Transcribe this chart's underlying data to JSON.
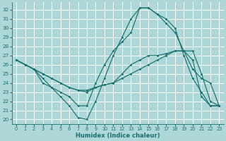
{
  "xlabel": "Humidex (Indice chaleur)",
  "bg_color": "#aed8d8",
  "grid_color": "#ffffff",
  "line_color": "#1a7070",
  "xlim": [
    -0.5,
    23.5
  ],
  "ylim": [
    19.5,
    32.8
  ],
  "xticks": [
    0,
    1,
    2,
    3,
    4,
    5,
    6,
    7,
    8,
    9,
    10,
    11,
    12,
    13,
    14,
    15,
    16,
    17,
    18,
    19,
    20,
    21,
    22,
    23
  ],
  "yticks": [
    20,
    21,
    22,
    23,
    24,
    25,
    26,
    27,
    28,
    29,
    30,
    31,
    32
  ],
  "series": [
    [
      26.5,
      26.0,
      25.5,
      24.0,
      23.5,
      22.5,
      21.5,
      20.2,
      20.0,
      22.0,
      24.5,
      27.0,
      29.0,
      31.0,
      32.2,
      32.2,
      31.5,
      31.0,
      30.0,
      27.0,
      24.5,
      23.0,
      21.5,
      21.5
    ],
    [
      26.5,
      26.0,
      25.5,
      24.5,
      23.5,
      23.0,
      22.5,
      21.5,
      21.5,
      24.0,
      26.0,
      27.5,
      28.5,
      29.5,
      32.2,
      32.2,
      31.5,
      30.5,
      29.5,
      27.5,
      25.5,
      24.5,
      24.0,
      21.5
    ],
    [
      26.5,
      26.0,
      25.5,
      25.0,
      24.5,
      24.0,
      23.5,
      23.2,
      23.2,
      23.5,
      23.8,
      24.0,
      25.0,
      26.0,
      26.5,
      27.0,
      27.0,
      27.2,
      27.5,
      27.5,
      27.5,
      25.0,
      22.0,
      21.5
    ],
    [
      26.5,
      26.0,
      25.5,
      25.0,
      24.5,
      24.0,
      23.5,
      23.2,
      23.0,
      23.5,
      23.8,
      24.0,
      24.5,
      25.0,
      25.5,
      26.0,
      26.5,
      27.0,
      27.5,
      27.5,
      26.5,
      22.5,
      21.5,
      21.5
    ]
  ]
}
